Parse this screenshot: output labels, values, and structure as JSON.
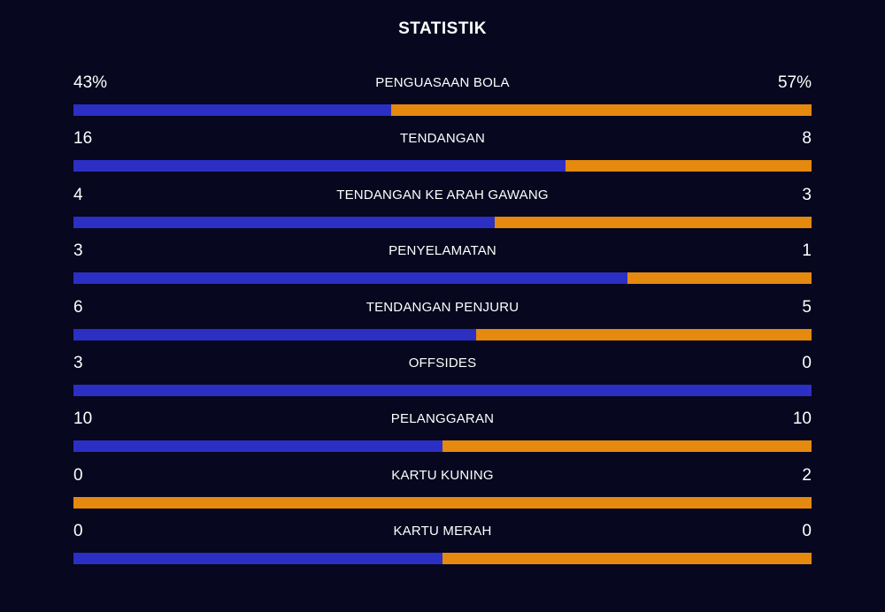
{
  "title": "STATISTIK",
  "colors": {
    "home": "#2b2fc4",
    "away": "#e5890f",
    "background": "#07071f"
  },
  "stats": [
    {
      "label": "PENGUASAAN BOLA",
      "home_display": "43%",
      "away_display": "57%",
      "home_share": 0.43
    },
    {
      "label": "TENDANGAN",
      "home_display": "16",
      "away_display": "8",
      "home_share": 0.667
    },
    {
      "label": "TENDANGAN KE ARAH GAWANG",
      "home_display": "4",
      "away_display": "3",
      "home_share": 0.571
    },
    {
      "label": "PENYELAMATAN",
      "home_display": "3",
      "away_display": "1",
      "home_share": 0.75
    },
    {
      "label": "TENDANGAN PENJURU",
      "home_display": "6",
      "away_display": "5",
      "home_share": 0.545
    },
    {
      "label": "OFFSIDES",
      "home_display": "3",
      "away_display": "0",
      "home_share": 1.0
    },
    {
      "label": "PELANGGARAN",
      "home_display": "10",
      "away_display": "10",
      "home_share": 0.5
    },
    {
      "label": "KARTU KUNING",
      "home_display": "0",
      "away_display": "2",
      "home_share": 0.0
    },
    {
      "label": "KARTU MERAH",
      "home_display": "0",
      "away_display": "0",
      "home_share": 0.5
    }
  ]
}
